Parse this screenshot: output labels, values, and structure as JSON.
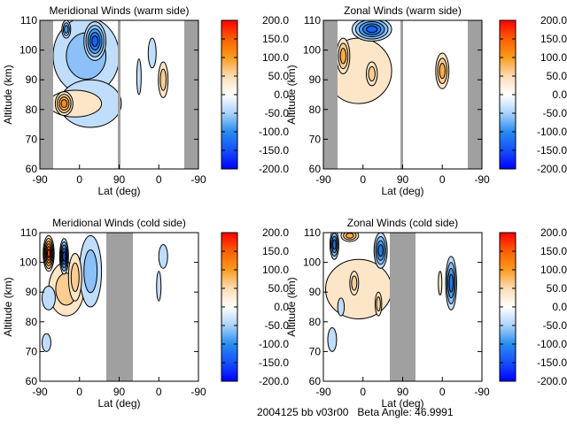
{
  "footer": "2004125 bb v03r00   Beta Angle: 46.9991",
  "colorbar": {
    "range": [
      -200,
      200
    ],
    "tick_labels": [
      "200.0",
      "150.0",
      "100.0",
      "50.0",
      "0.0",
      "-50.0",
      "-100.0",
      "-150.0",
      "-200.0"
    ],
    "colors": {
      "min": "#0000ff",
      "mid": "#ffffff",
      "max": "#ff0000",
      "orange": "#fa9a1e"
    }
  },
  "chart_data": [
    {
      "type": "heatmap",
      "title": "Meridional Winds (warm side)",
      "xlabel": "Lat (deg)",
      "ylabel": "Altitude (km)",
      "x_tick_labels": [
        "-90",
        "0",
        "90",
        "0",
        "-90"
      ],
      "y_tick_labels": [
        "60",
        "70",
        "80",
        "90",
        "100",
        "110"
      ],
      "ylim": [
        60,
        110
      ],
      "features": [
        {
          "half": 1,
          "lat": 15,
          "alt": 98,
          "peak": -60,
          "lat_width": 150,
          "alt_height": 26
        },
        {
          "half": 1,
          "lat": 25,
          "alt": 82,
          "peak": -35,
          "lat_width": 140,
          "alt_height": 16
        },
        {
          "half": 1,
          "lat": 35,
          "alt": 103,
          "peak": -140,
          "lat_width": 50,
          "alt_height": 13
        },
        {
          "half": 1,
          "lat": -30,
          "alt": 107,
          "peak": -90,
          "lat_width": 20,
          "alt_height": 6
        },
        {
          "half": 1,
          "lat": -10,
          "alt": 82,
          "peak": 35,
          "lat_width": 120,
          "alt_height": 9
        },
        {
          "half": 1,
          "lat": -35,
          "alt": 82,
          "peak": 110,
          "lat_width": 40,
          "alt_height": 8
        },
        {
          "half": 2,
          "lat": 15,
          "alt": 99,
          "peak": -45,
          "lat_width": 18,
          "alt_height": 10
        },
        {
          "half": 2,
          "lat": -10,
          "alt": 90,
          "peak": 60,
          "lat_width": 22,
          "alt_height": 12
        },
        {
          "half": 2,
          "lat": 45,
          "alt": 91,
          "peak": -30,
          "lat_width": 10,
          "alt_height": 12
        }
      ]
    },
    {
      "type": "heatmap",
      "title": "Zonal Winds (warm side)",
      "xlabel": "Lat (deg)",
      "ylabel": "Altitude (km)",
      "x_tick_labels": [
        "-90",
        "0",
        "90",
        "0",
        "-90"
      ],
      "y_tick_labels": [
        "60",
        "70",
        "80",
        "90",
        "100",
        "110"
      ],
      "ylim": [
        60,
        110
      ],
      "features": [
        {
          "half": 1,
          "lat": -10,
          "alt": 93,
          "peak": 40,
          "lat_width": 150,
          "alt_height": 22
        },
        {
          "half": 1,
          "lat": 20,
          "alt": 107,
          "peak": -130,
          "lat_width": 90,
          "alt_height": 8
        },
        {
          "half": 1,
          "lat": -45,
          "alt": 98,
          "peak": 90,
          "lat_width": 30,
          "alt_height": 12
        },
        {
          "half": 1,
          "lat": 20,
          "alt": 92,
          "peak": 60,
          "lat_width": 25,
          "alt_height": 8
        },
        {
          "half": 2,
          "lat": 0,
          "alt": 93,
          "peak": 90,
          "lat_width": 30,
          "alt_height": 12
        }
      ]
    },
    {
      "type": "heatmap",
      "title": "Meridional Winds (cold side)",
      "xlabel": "Lat (deg)",
      "ylabel": "Altitude (km)",
      "x_tick_labels": [
        "-90",
        "0",
        "90",
        "0",
        "-90"
      ],
      "y_tick_labels": [
        "60",
        "70",
        "80",
        "90",
        "100",
        "110"
      ],
      "ylim": [
        60,
        110
      ],
      "features": [
        {
          "half": 1,
          "lat": -30,
          "alt": 91,
          "peak": 50,
          "lat_width": 80,
          "alt_height": 18
        },
        {
          "half": 1,
          "lat": 25,
          "alt": 97,
          "peak": -60,
          "lat_width": 50,
          "alt_height": 24
        },
        {
          "half": 1,
          "lat": -70,
          "alt": 103,
          "peak": 160,
          "lat_width": 25,
          "alt_height": 12
        },
        {
          "half": 1,
          "lat": -35,
          "alt": 102,
          "peak": -130,
          "lat_width": 20,
          "alt_height": 12
        },
        {
          "half": 1,
          "lat": -10,
          "alt": 95,
          "peak": 70,
          "lat_width": 30,
          "alt_height": 16
        },
        {
          "half": 1,
          "lat": -70,
          "alt": 88,
          "peak": -40,
          "lat_width": 30,
          "alt_height": 8
        },
        {
          "half": 1,
          "lat": -75,
          "alt": 73,
          "peak": -30,
          "lat_width": 20,
          "alt_height": 6
        },
        {
          "half": 2,
          "lat": 0,
          "alt": 92,
          "peak": -30,
          "lat_width": 10,
          "alt_height": 10
        },
        {
          "half": 2,
          "lat": -10,
          "alt": 102,
          "peak": -40,
          "lat_width": 20,
          "alt_height": 8
        }
      ]
    },
    {
      "type": "heatmap",
      "title": "Zonal Winds (cold side)",
      "xlabel": "Lat (deg)",
      "ylabel": "Altitude (km)",
      "x_tick_labels": [
        "-90",
        "0",
        "90",
        "0",
        "-90"
      ],
      "y_tick_labels": [
        "60",
        "70",
        "80",
        "90",
        "100",
        "110"
      ],
      "ylim": [
        60,
        110
      ],
      "features": [
        {
          "half": 1,
          "lat": -10,
          "alt": 91,
          "peak": 40,
          "lat_width": 150,
          "alt_height": 20
        },
        {
          "half": 1,
          "lat": -65,
          "alt": 106,
          "peak": -120,
          "lat_width": 20,
          "alt_height": 10
        },
        {
          "half": 1,
          "lat": -30,
          "alt": 109,
          "peak": 80,
          "lat_width": 40,
          "alt_height": 4
        },
        {
          "half": 1,
          "lat": 40,
          "alt": 104,
          "peak": -120,
          "lat_width": 30,
          "alt_height": 12
        },
        {
          "half": 1,
          "lat": -20,
          "alt": 93,
          "peak": 60,
          "lat_width": 20,
          "alt_height": 8
        },
        {
          "half": 1,
          "lat": 35,
          "alt": 86,
          "peak": 60,
          "lat_width": 15,
          "alt_height": 8
        },
        {
          "half": 1,
          "lat": -50,
          "alt": 85,
          "peak": -30,
          "lat_width": 15,
          "alt_height": 6
        },
        {
          "half": 1,
          "lat": -70,
          "alt": 74,
          "peak": -30,
          "lat_width": 20,
          "alt_height": 8
        },
        {
          "half": 2,
          "lat": -20,
          "alt": 93,
          "peak": -110,
          "lat_width": 25,
          "alt_height": 18
        },
        {
          "half": 2,
          "lat": 5,
          "alt": 93,
          "peak": 40,
          "lat_width": 8,
          "alt_height": 8
        }
      ]
    }
  ]
}
